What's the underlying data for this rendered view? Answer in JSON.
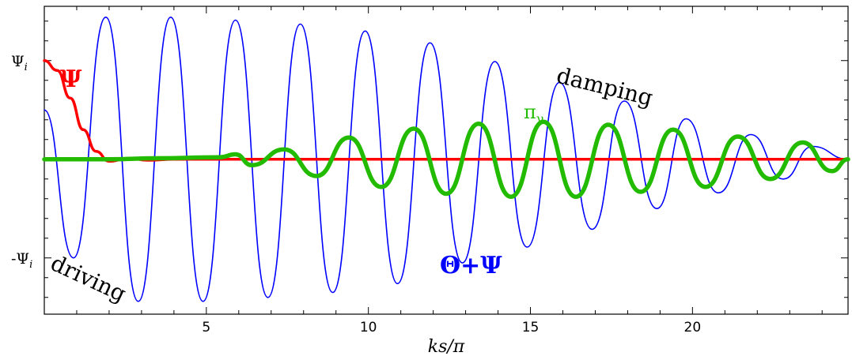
{
  "chart_data": {
    "type": "line",
    "title": "",
    "xlabel": "ks/π",
    "ylabel": "",
    "xlim": [
      0,
      24.8
    ],
    "ylim": [
      -1.57,
      1.55
    ],
    "x_ticks": [
      5,
      10,
      15,
      20
    ],
    "x_tick_labels": [
      "5",
      "10",
      "15",
      "20"
    ],
    "y_ticks": [
      1,
      -1
    ],
    "y_tick_labels": [
      "Ψi",
      "-Ψi"
    ],
    "grid": false,
    "legend": "none (series labeled inline)",
    "series": [
      {
        "name": "Θ+Ψ",
        "color": "#0000ff",
        "description": "damped driven oscillation",
        "points": [
          [
            0.0,
            0.5
          ],
          [
            0.9,
            -1.0
          ],
          [
            1.9,
            1.44
          ],
          [
            2.9,
            -1.44
          ],
          [
            3.9,
            1.44
          ],
          [
            4.9,
            -1.44
          ],
          [
            5.9,
            1.41
          ],
          [
            6.9,
            -1.4
          ],
          [
            7.9,
            1.37
          ],
          [
            8.9,
            -1.35
          ],
          [
            9.9,
            1.3
          ],
          [
            10.9,
            -1.26
          ],
          [
            11.9,
            1.18
          ],
          [
            12.9,
            -1.05
          ],
          [
            13.9,
            0.99
          ],
          [
            14.9,
            -0.89
          ],
          [
            15.9,
            0.78
          ],
          [
            16.9,
            -0.71
          ],
          [
            17.9,
            0.59
          ],
          [
            18.9,
            -0.5
          ],
          [
            19.8,
            0.41
          ],
          [
            20.8,
            -0.34
          ],
          [
            21.8,
            0.25
          ],
          [
            22.8,
            -0.2
          ],
          [
            23.7,
            0.13
          ],
          [
            24.8,
            0.0
          ]
        ]
      },
      {
        "name": "Ψ",
        "color": "#ff0000",
        "description": "potential decaying from Ψi to ~0",
        "points": [
          [
            0.0,
            1.0
          ],
          [
            0.4,
            0.9
          ],
          [
            0.8,
            0.62
          ],
          [
            1.2,
            0.3
          ],
          [
            1.6,
            0.08
          ],
          [
            2.0,
            -0.02
          ],
          [
            2.6,
            0.01
          ],
          [
            3.2,
            -0.01
          ],
          [
            4.0,
            0.0
          ],
          [
            24.8,
            0.0
          ]
        ]
      },
      {
        "name": "πγ",
        "color": "#22bb00",
        "description": "growing then damped oscillation",
        "points": [
          [
            0.0,
            0.0
          ],
          [
            2.0,
            0.0
          ],
          [
            3.5,
            0.01
          ],
          [
            5.4,
            0.02
          ],
          [
            5.9,
            0.05
          ],
          [
            6.4,
            -0.06
          ],
          [
            7.4,
            0.1
          ],
          [
            8.4,
            -0.17
          ],
          [
            9.4,
            0.22
          ],
          [
            10.4,
            -0.28
          ],
          [
            11.4,
            0.31
          ],
          [
            12.4,
            -0.35
          ],
          [
            13.4,
            0.36
          ],
          [
            14.4,
            -0.38
          ],
          [
            15.4,
            0.38
          ],
          [
            16.4,
            -0.38
          ],
          [
            17.4,
            0.35
          ],
          [
            18.4,
            -0.33
          ],
          [
            19.4,
            0.3
          ],
          [
            20.4,
            -0.28
          ],
          [
            21.4,
            0.23
          ],
          [
            22.4,
            -0.2
          ],
          [
            23.4,
            0.17
          ],
          [
            24.3,
            -0.12
          ],
          [
            24.8,
            0.0
          ]
        ]
      }
    ],
    "annotations": [
      {
        "text": "Ψ",
        "color": "#ff0000"
      },
      {
        "text": "πγ",
        "color": "#22bb00"
      },
      {
        "text": "Θ+Ψ",
        "color": "#0000ff"
      },
      {
        "text": "damping",
        "color": "#000000"
      },
      {
        "text": "driving",
        "color": "#000000"
      }
    ]
  }
}
